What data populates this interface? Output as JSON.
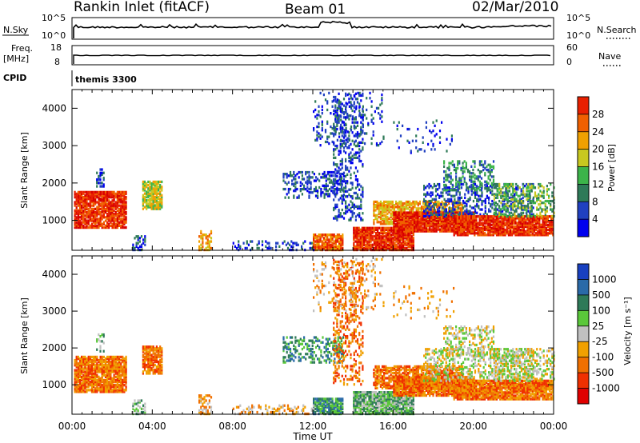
{
  "header": {
    "station": "Rankin Inlet (fitACF)",
    "beam": "Beam 01",
    "date": "02/Mar/2010"
  },
  "panels": {
    "nsky": {
      "label": "N.Sky",
      "right_label": "N.Search",
      "left_ticks": [
        "10^5",
        "10^0"
      ],
      "right_ticks": [
        "10^5",
        "10^0"
      ]
    },
    "freq": {
      "label": "Freq.",
      "unit": "[MHz]",
      "right_label": "Nave",
      "left_ticks": [
        "18",
        "8"
      ],
      "right_ticks": [
        "60",
        "0"
      ]
    },
    "cpid": {
      "label": "CPID",
      "value": "themis 3300"
    }
  },
  "colors": {
    "power": [
      "#0000ee",
      "#2040c0",
      "#2e7a58",
      "#3cb44a",
      "#c8c820",
      "#f0a000",
      "#f06000",
      "#e82000",
      "#d80000"
    ],
    "velocity": [
      "#1840c0",
      "#2a6aa8",
      "#2e7a58",
      "#5ac83a",
      "#c0c0c0",
      "#f0a000",
      "#f07000",
      "#f03000",
      "#e00000"
    ]
  },
  "chart_data": [
    {
      "type": "heatmap",
      "title": "Power",
      "ylabel": "Slant Range [km]",
      "colorbar_label": "Power [dB]",
      "colorbar_ticks": [
        "28",
        "24",
        "20",
        "16",
        "12",
        "8",
        "4"
      ],
      "x_ticks": [
        "00:00",
        "04:00",
        "08:00",
        "12:00",
        "16:00",
        "20:00",
        "00:00"
      ],
      "y_ticks": [
        "1000",
        "2000",
        "3000",
        "4000"
      ],
      "ylim": [
        200,
        4500
      ],
      "xlim_hours": [
        0,
        24
      ]
    },
    {
      "type": "heatmap",
      "title": "Velocity",
      "ylabel": "Slant Range [km]",
      "xlabel": "Time UT",
      "colorbar_label": "Velocity [m s⁻¹]",
      "colorbar_ticks": [
        "1000",
        "500",
        "100",
        "25",
        "-25",
        "-100",
        "-500",
        "-1000"
      ],
      "x_ticks": [
        "00:00",
        "04:00",
        "08:00",
        "12:00",
        "16:00",
        "20:00",
        "00:00"
      ],
      "y_ticks": [
        "1000",
        "2000",
        "3000",
        "4000"
      ],
      "ylim": [
        200,
        4500
      ],
      "xlim_hours": [
        0,
        24
      ]
    }
  ],
  "axis": {
    "xlabel": "Time UT"
  }
}
